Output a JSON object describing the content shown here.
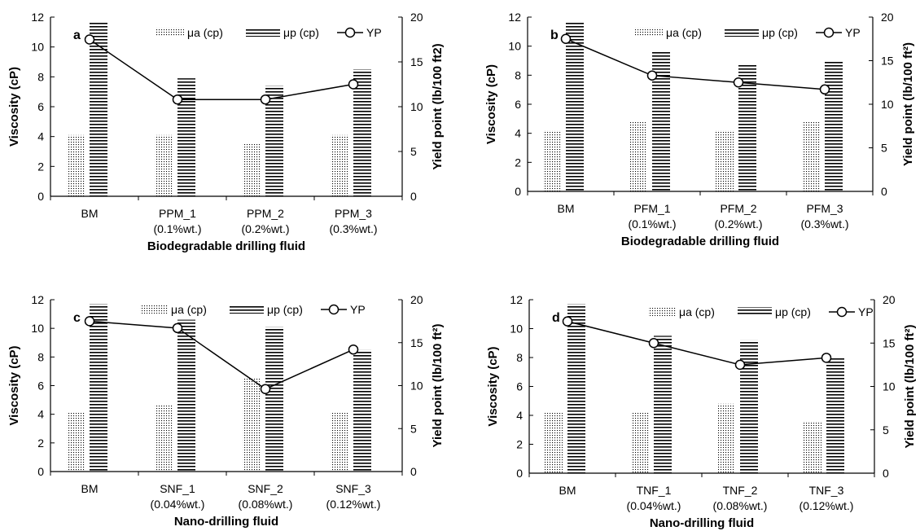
{
  "chart_data": [
    {
      "type": "bar",
      "panel_label": "a",
      "xlabel": "Biodegradable drilling fluid",
      "ylabel": "Viscosity (cP)",
      "y2label": "Yield point (lb/100 ft2)",
      "ylim": [
        0,
        12
      ],
      "y2lim": [
        0,
        20
      ],
      "yticks": [
        "0",
        "2",
        "4",
        "6",
        "8",
        "10",
        "12"
      ],
      "y2ticks": [
        "0",
        "5",
        "10",
        "15",
        "20"
      ],
      "categories": [
        {
          "line1": "BM",
          "line2": ""
        },
        {
          "line1": "PPM_1",
          "line2": "(0.1%wt.)"
        },
        {
          "line1": "PPM_2",
          "line2": "(0.2%wt.)"
        },
        {
          "line1": "PPM_3",
          "line2": "(0.3%wt.)"
        }
      ],
      "legend": [
        "μa (cp)",
        "μp (cp)",
        "YP"
      ],
      "series": [
        {
          "name": "μa (cp)",
          "axis": "left",
          "values": [
            4.1,
            4.1,
            3.5,
            4.1
          ]
        },
        {
          "name": "μp (cp)",
          "axis": "left",
          "values": [
            11.7,
            7.9,
            7.4,
            8.5
          ]
        },
        {
          "name": "YP",
          "axis": "right",
          "values": [
            17.5,
            10.8,
            10.8,
            12.5
          ]
        }
      ]
    },
    {
      "type": "bar",
      "panel_label": "b",
      "xlabel": "Biodegradable drilling fluid",
      "ylabel": "Viscosity (cP)",
      "y2label": "Yield point (lb/100 ft²)",
      "ylim": [
        0,
        12
      ],
      "y2lim": [
        0,
        20
      ],
      "yticks": [
        "0",
        "2",
        "4",
        "6",
        "8",
        "10",
        "12"
      ],
      "y2ticks": [
        "0",
        "5",
        "10",
        "15",
        "20"
      ],
      "categories": [
        {
          "line1": "BM",
          "line2": ""
        },
        {
          "line1": "PFM_1",
          "line2": "(0.1%wt.)"
        },
        {
          "line1": "PFM_2",
          "line2": "(0.2%wt.)"
        },
        {
          "line1": "PFM_3",
          "line2": "(0.3%wt.)"
        }
      ],
      "legend": [
        "μa (cp)",
        "μp (cp)",
        "YP"
      ],
      "series": [
        {
          "name": "μa (cp)",
          "axis": "left",
          "values": [
            4.2,
            4.8,
            4.2,
            4.8
          ]
        },
        {
          "name": "μp (cp)",
          "axis": "left",
          "values": [
            11.7,
            9.6,
            8.7,
            9.0
          ]
        },
        {
          "name": "YP",
          "axis": "right",
          "values": [
            17.5,
            13.3,
            12.5,
            11.7
          ]
        }
      ]
    },
    {
      "type": "bar",
      "panel_label": "c",
      "xlabel": "Nano-drilling fluid",
      "ylabel": "Viscosity (cP)",
      "y2label": "Yield point (lb/100 ft²)",
      "ylim": [
        0,
        12
      ],
      "y2lim": [
        0,
        20
      ],
      "yticks": [
        "0",
        "2",
        "4",
        "6",
        "8",
        "10",
        "12"
      ],
      "y2ticks": [
        "0",
        "5",
        "10",
        "15",
        "20"
      ],
      "categories": [
        {
          "line1": "BM",
          "line2": ""
        },
        {
          "line1": "SNF_1",
          "line2": "(0.04%wt.)"
        },
        {
          "line1": "SNF_2",
          "line2": "(0.08%wt.)"
        },
        {
          "line1": "SNF_3",
          "line2": "(0.12%wt.)"
        }
      ],
      "legend": [
        "μa (cp)",
        "μp (cp)",
        "YP"
      ],
      "series": [
        {
          "name": "μa (cp)",
          "axis": "left",
          "values": [
            4.1,
            4.7,
            6.5,
            4.1
          ]
        },
        {
          "name": "μp (cp)",
          "axis": "left",
          "values": [
            11.7,
            10.6,
            10.1,
            8.5
          ]
        },
        {
          "name": "YP",
          "axis": "right",
          "values": [
            17.5,
            16.7,
            9.6,
            14.2
          ]
        }
      ]
    },
    {
      "type": "bar",
      "panel_label": "d",
      "xlabel": "Nano-drilling fluid",
      "ylabel": "Viscosity (cP)",
      "y2label": "Yield point (lb/100 ft²)",
      "ylim": [
        0,
        12
      ],
      "y2lim": [
        0,
        20
      ],
      "yticks": [
        "0",
        "2",
        "4",
        "6",
        "8",
        "10",
        "12"
      ],
      "y2ticks": [
        "0",
        "5",
        "10",
        "15",
        "20"
      ],
      "categories": [
        {
          "line1": "BM",
          "line2": ""
        },
        {
          "line1": "TNF_1",
          "line2": "(0.04%wt.)"
        },
        {
          "line1": "TNF_2",
          "line2": "(0.08%wt.)"
        },
        {
          "line1": "TNF_3",
          "line2": "(0.12%wt.)"
        }
      ],
      "legend": [
        "μa (cp)",
        "μp (cp)",
        "YP"
      ],
      "series": [
        {
          "name": "μa (cp)",
          "axis": "left",
          "values": [
            4.2,
            4.2,
            4.8,
            3.6
          ]
        },
        {
          "name": "μp (cp)",
          "axis": "left",
          "values": [
            11.7,
            9.5,
            9.2,
            8.0
          ]
        },
        {
          "name": "YP",
          "axis": "right",
          "values": [
            17.5,
            15.0,
            12.5,
            13.3
          ]
        }
      ]
    }
  ]
}
